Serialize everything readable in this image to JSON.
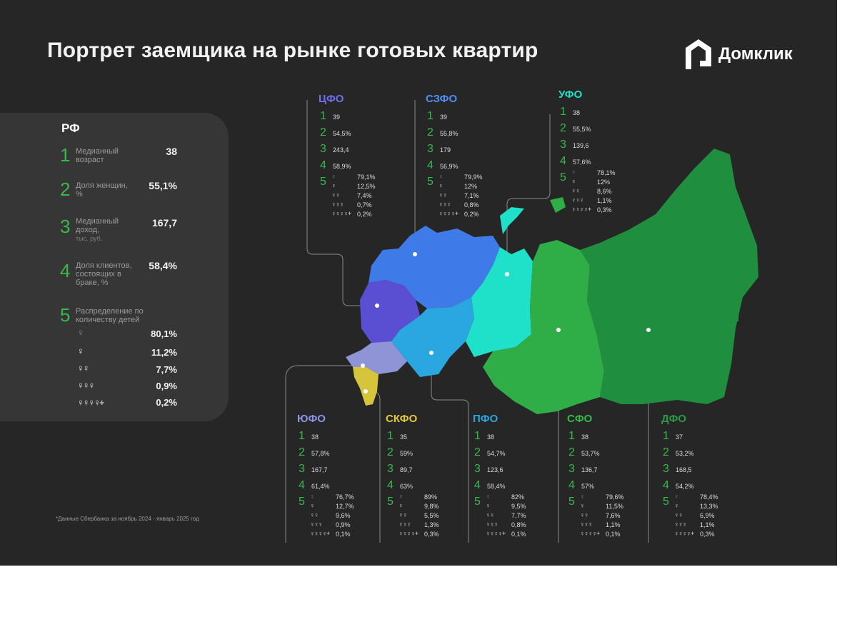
{
  "title": "Портрет заемщика на рынке готовых квартир",
  "logo": {
    "text": "Домклик",
    "icon": "domclick-house-icon"
  },
  "colors": {
    "background": "#262626",
    "panel": "#363636",
    "number_green": "#36b94a",
    "cfo": "#5a4fd3",
    "szfo": "#3f7be8",
    "ufo": "#1fe0c8",
    "yufo": "#8e94d6",
    "skfo": "#d6c43a",
    "pfo": "#2aa6e0",
    "sfo": "#2fae48",
    "dfo": "#1f8f3f"
  },
  "rf": {
    "title": "РФ",
    "rows": [
      {
        "num": "1",
        "label": "Медианный возраст",
        "sub": "",
        "value": "38"
      },
      {
        "num": "2",
        "label": "Доля женщин, %",
        "sub": "",
        "value": "55,1%"
      },
      {
        "num": "3",
        "label": "Медианный доход,",
        "sub": "тыс. руб.",
        "value": "167,7"
      },
      {
        "num": "4",
        "label": "Доля клиентов, состоящих в браке, %",
        "sub": "",
        "value": "58,4%"
      },
      {
        "num": "5",
        "label": "Распределение по количеству детей",
        "sub": "",
        "value": ""
      }
    ],
    "children": [
      "80,1%",
      "11,2%",
      "7,7%",
      "0,9%",
      "0,2%"
    ]
  },
  "districts": [
    {
      "name": "ЦФО",
      "color": "#6f6ff0",
      "v1": "39",
      "v2": "54,5%",
      "v3": "243,4",
      "v4": "58,9%",
      "kids": [
        "79,1%",
        "12,5%",
        "7,4%",
        "0,7%",
        "0,2%"
      ]
    },
    {
      "name": "СЗФО",
      "color": "#4f8ef5",
      "v1": "39",
      "v2": "55,8%",
      "v3": "179",
      "v4": "56,9%",
      "kids": [
        "79,9%",
        "12%",
        "7,1%",
        "0,8%",
        "0,2%"
      ]
    },
    {
      "name": "УФО",
      "color": "#25e0c6",
      "v1": "38",
      "v2": "55,5%",
      "v3": "139,6",
      "v4": "57,6%",
      "kids": [
        "78,1%",
        "12%",
        "8,6%",
        "1,1%",
        "0,3%"
      ]
    },
    {
      "name": "ЮФО",
      "color": "#8e94e6",
      "v1": "38",
      "v2": "57,8%",
      "v3": "167,7",
      "v4": "61,4%",
      "kids": [
        "76,7%",
        "12,7%",
        "9,6%",
        "0,9%",
        "0,1%"
      ]
    },
    {
      "name": "СКФО",
      "color": "#e0c93a",
      "v1": "35",
      "v2": "59%",
      "v3": "89,7",
      "v4": "63%",
      "kids": [
        "89%",
        "9,8%",
        "5,5%",
        "1,3%",
        "0,3%"
      ]
    },
    {
      "name": "ПФО",
      "color": "#2aa6e0",
      "v1": "38",
      "v2": "54,7%",
      "v3": "123,6",
      "v4": "58,4%",
      "kids": [
        "82%",
        "9,5%",
        "7,7%",
        "0,8%",
        "0,1%"
      ]
    },
    {
      "name": "СФО",
      "color": "#36b94a",
      "v1": "38",
      "v2": "53,7%",
      "v3": "136,7",
      "v4": "57%",
      "kids": [
        "79,6%",
        "11,5%",
        "7,6%",
        "1,1%",
        "0,1%"
      ]
    },
    {
      "name": "ДФО",
      "color": "#2a9a45",
      "v1": "37",
      "v2": "53,2%",
      "v3": "168,5",
      "v4": "54,2%",
      "kids": [
        "78,4%",
        "13,3%",
        "6,9%",
        "1,1%",
        "0,3%"
      ]
    }
  ],
  "footnote": "*Данные Сбербанка за ноябрь 2024 - январь 2025 год"
}
